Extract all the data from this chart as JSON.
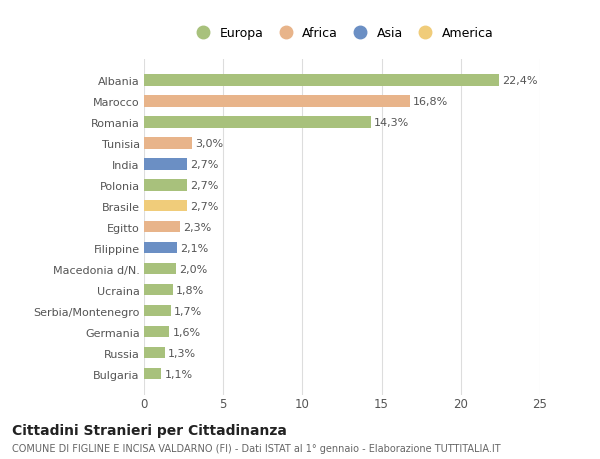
{
  "categories": [
    "Albania",
    "Marocco",
    "Romania",
    "Tunisia",
    "India",
    "Polonia",
    "Brasile",
    "Egitto",
    "Filippine",
    "Macedonia d/N.",
    "Ucraina",
    "Serbia/Montenegro",
    "Germania",
    "Russia",
    "Bulgaria"
  ],
  "values": [
    22.4,
    16.8,
    14.3,
    3.0,
    2.7,
    2.7,
    2.7,
    2.3,
    2.1,
    2.0,
    1.8,
    1.7,
    1.6,
    1.3,
    1.1
  ],
  "labels": [
    "22,4%",
    "16,8%",
    "14,3%",
    "3,0%",
    "2,7%",
    "2,7%",
    "2,7%",
    "2,3%",
    "2,1%",
    "2,0%",
    "1,8%",
    "1,7%",
    "1,6%",
    "1,3%",
    "1,1%"
  ],
  "colors": [
    "#a8c17c",
    "#e8b48a",
    "#a8c17c",
    "#e8b48a",
    "#6b8fc4",
    "#a8c17c",
    "#f0cc7a",
    "#e8b48a",
    "#6b8fc4",
    "#a8c17c",
    "#a8c17c",
    "#a8c17c",
    "#a8c17c",
    "#a8c17c",
    "#a8c17c"
  ],
  "legend": {
    "Europa": "#a8c17c",
    "Africa": "#e8b48a",
    "Asia": "#6b8fc4",
    "America": "#f0cc7a"
  },
  "xlim": [
    0,
    25
  ],
  "xticks": [
    0,
    5,
    10,
    15,
    20,
    25
  ],
  "title": "Cittadini Stranieri per Cittadinanza",
  "subtitle": "COMUNE DI FIGLINE E INCISA VALDARNO (FI) - Dati ISTAT al 1° gennaio - Elaborazione TUTTITALIA.IT",
  "bg_color": "#ffffff",
  "grid_color": "#dddddd",
  "bar_height": 0.55,
  "label_fontsize": 8.0,
  "ytick_fontsize": 8.0,
  "xtick_fontsize": 8.5,
  "title_fontsize": 10,
  "subtitle_fontsize": 7.0,
  "legend_fontsize": 9
}
